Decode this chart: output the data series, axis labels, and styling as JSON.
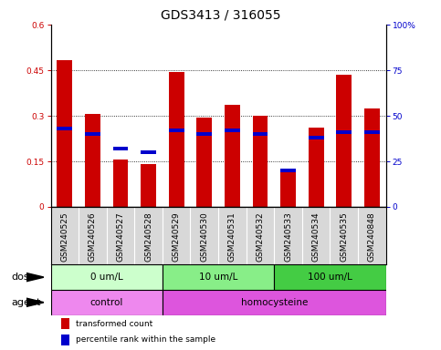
{
  "title": "GDS3413 / 316055",
  "samples": [
    "GSM240525",
    "GSM240526",
    "GSM240527",
    "GSM240528",
    "GSM240529",
    "GSM240530",
    "GSM240531",
    "GSM240532",
    "GSM240533",
    "GSM240534",
    "GSM240535",
    "GSM240848"
  ],
  "transformed_count": [
    0.485,
    0.305,
    0.155,
    0.14,
    0.445,
    0.295,
    0.335,
    0.3,
    0.125,
    0.26,
    0.435,
    0.325
  ],
  "percentile_rank_pct": [
    43,
    40,
    32,
    30,
    42,
    40,
    42,
    40,
    20,
    38,
    41,
    41
  ],
  "ylim_left": [
    0,
    0.6
  ],
  "yticks_left": [
    0,
    0.15,
    0.3,
    0.45,
    0.6
  ],
  "ytick_left_labels": [
    "0",
    "0.15",
    "0.3",
    "0.45",
    "0.6"
  ],
  "yticks_right": [
    0,
    25,
    50,
    75,
    100
  ],
  "ytick_right_labels": [
    "0",
    "25",
    "50",
    "75",
    "100%"
  ],
  "bar_color": "#cc0000",
  "percentile_color": "#0000cc",
  "dose_groups": [
    {
      "label": "0 um/L",
      "start": 0,
      "end": 4,
      "color": "#ccffcc"
    },
    {
      "label": "10 um/L",
      "start": 4,
      "end": 8,
      "color": "#88ee88"
    },
    {
      "label": "100 um/L",
      "start": 8,
      "end": 12,
      "color": "#44cc44"
    }
  ],
  "agent_groups": [
    {
      "label": "control",
      "start": 0,
      "end": 4,
      "color": "#ee88ee"
    },
    {
      "label": "homocysteine",
      "start": 4,
      "end": 12,
      "color": "#dd55dd"
    }
  ],
  "dose_row_label": "dose",
  "agent_row_label": "agent",
  "legend": [
    {
      "label": "transformed count",
      "color": "#cc0000"
    },
    {
      "label": "percentile rank within the sample",
      "color": "#0000cc"
    }
  ],
  "bar_width": 0.55,
  "title_fontsize": 10,
  "tick_fontsize": 6.5,
  "label_fontsize": 7.5,
  "row_label_fontsize": 8
}
